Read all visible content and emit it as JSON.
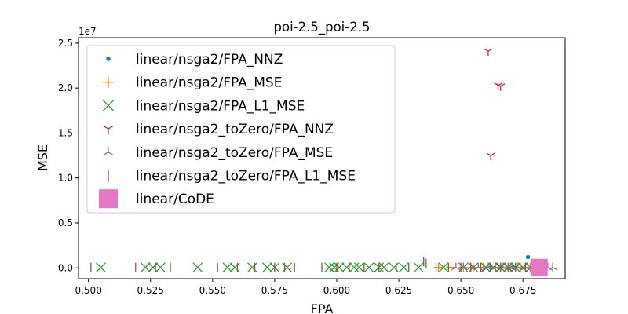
{
  "chart_data": {
    "type": "scatter",
    "title": "poi-2.5_poi-2.5",
    "xlabel": "FPA",
    "ylabel": "MSE",
    "y_offset_label": "1e7",
    "xlim": [
      0.496,
      0.692
    ],
    "ylim": [
      -1.2,
      25.6
    ],
    "y_scale_note": "y values in units of 1e7 (shown as 1e7 offset)",
    "x_ticks": [
      "0.500",
      "0.525",
      "0.550",
      "0.575",
      "0.600",
      "0.625",
      "0.650",
      "0.675"
    ],
    "x_tick_values": [
      0.5,
      0.525,
      0.55,
      0.575,
      0.6,
      0.625,
      0.65,
      0.675
    ],
    "y_ticks": [
      "0.0",
      "0.5",
      "1.0",
      "1.5",
      "2.0",
      "2.5"
    ],
    "y_tick_values": [
      0,
      5,
      10,
      15,
      20,
      25
    ],
    "grid": false,
    "legend_position": "upper-left",
    "series": [
      {
        "name": "linear/nsga2/FPA_NNZ",
        "marker": "dot",
        "color": "#1f77b4",
        "x": [
          0.677,
          0.662,
          0.666,
          0.671
        ],
        "y": [
          1.2,
          0.05,
          0.05,
          0.05
        ]
      },
      {
        "name": "linear/nsga2/FPA_MSE",
        "marker": "plus",
        "color": "#ff7f0e",
        "x": [
          0.641,
          0.646,
          0.651,
          0.655,
          0.659,
          0.662,
          0.664,
          0.666,
          0.668,
          0.67,
          0.672,
          0.674,
          0.676,
          0.678
        ],
        "y": [
          0.05,
          0.05,
          0.05,
          0.05,
          0.05,
          0.05,
          0.05,
          0.05,
          0.05,
          0.05,
          0.05,
          0.05,
          0.05,
          0.05
        ]
      },
      {
        "name": "linear/nsga2/FPA_L1_MSE",
        "marker": "x",
        "color": "#2ca02c",
        "x": [
          0.505,
          0.523,
          0.526,
          0.529,
          0.544,
          0.556,
          0.559,
          0.566,
          0.572,
          0.575,
          0.58,
          0.597,
          0.599,
          0.601,
          0.604,
          0.607,
          0.609,
          0.613,
          0.617,
          0.619,
          0.623,
          0.627,
          0.633,
          0.643,
          0.651,
          0.655,
          0.66,
          0.663,
          0.666,
          0.669,
          0.672,
          0.675,
          0.678
        ],
        "y": [
          0.05,
          0.05,
          0.05,
          0.05,
          0.05,
          0.05,
          0.05,
          0.05,
          0.05,
          0.05,
          0.05,
          0.05,
          0.05,
          0.05,
          0.05,
          0.05,
          0.05,
          0.05,
          0.05,
          0.05,
          0.05,
          0.05,
          0.05,
          0.05,
          0.05,
          0.05,
          0.05,
          0.05,
          0.05,
          0.05,
          0.05,
          0.05,
          0.05
        ]
      },
      {
        "name": "linear/nsga2_toZero/FPA_NNZ",
        "marker": "tri_down",
        "color": "#d62728",
        "x": [
          0.661,
          0.665,
          0.666,
          0.662
        ],
        "y": [
          24.1,
          20.3,
          20.2,
          12.5
        ]
      },
      {
        "name": "linear/nsga2_toZero/FPA_MSE",
        "marker": "tri_up",
        "color": "#9467bd",
        "x": [
          0.648,
          0.651,
          0.654,
          0.657,
          0.661,
          0.664,
          0.667,
          0.67,
          0.673,
          0.676,
          0.679,
          0.682,
          0.685,
          0.687
        ],
        "y": [
          0.05,
          0.05,
          0.05,
          0.05,
          0.05,
          0.05,
          0.05,
          0.05,
          0.05,
          0.05,
          0.05,
          0.05,
          0.05,
          0.05
        ]
      },
      {
        "name": "linear/nsga2_toZero/FPA_L1_MSE",
        "marker": "vline",
        "color": "#8c564b",
        "x": [
          0.501,
          0.519,
          0.527,
          0.533,
          0.552,
          0.56,
          0.567,
          0.575,
          0.579,
          0.583,
          0.594,
          0.6,
          0.605,
          0.611,
          0.617,
          0.624,
          0.629,
          0.635,
          0.636,
          0.64,
          0.645,
          0.65,
          0.654,
          0.658,
          0.662,
          0.666,
          0.669,
          0.672,
          0.676,
          0.68,
          0.684,
          0.687
        ],
        "y": [
          0.05,
          0.05,
          0.05,
          0.05,
          0.05,
          0.05,
          0.05,
          0.05,
          0.05,
          0.05,
          0.05,
          0.05,
          0.05,
          0.05,
          0.05,
          0.05,
          0.05,
          0.7,
          0.5,
          0.05,
          0.05,
          0.05,
          0.05,
          0.05,
          0.05,
          0.05,
          0.05,
          0.05,
          0.05,
          0.05,
          0.05,
          0.05
        ]
      },
      {
        "name": "linear/CoDE",
        "marker": "square",
        "color": "#e377c2",
        "x": [
          0.6815
        ],
        "y": [
          0.05
        ]
      }
    ]
  }
}
